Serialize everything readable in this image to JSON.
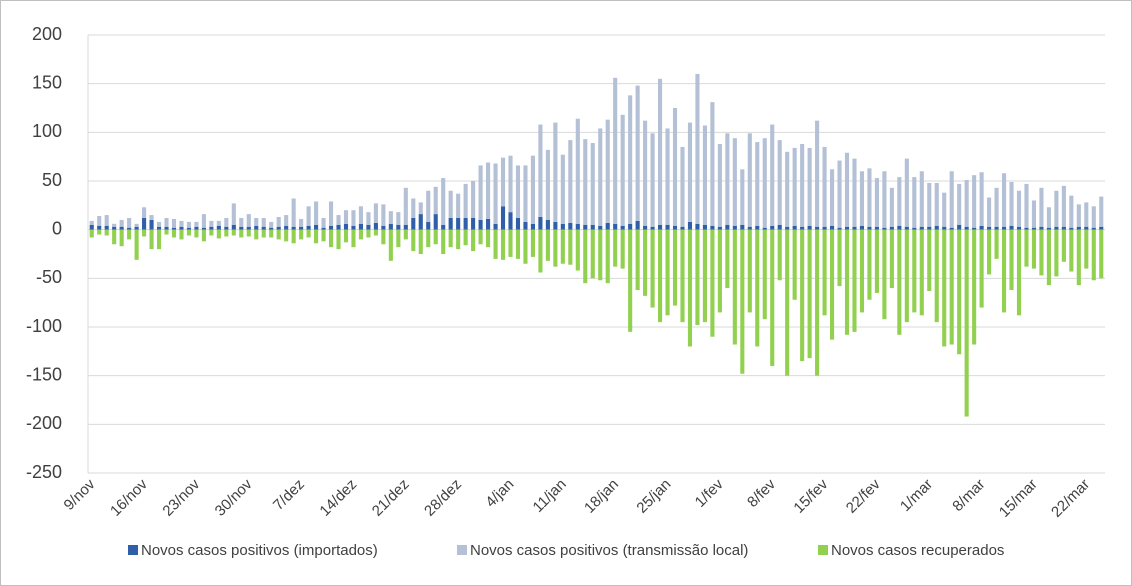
{
  "chart_data": {
    "type": "bar",
    "stacked": true,
    "categories": [
      "9/nov",
      null,
      null,
      null,
      null,
      null,
      null,
      "16/nov",
      null,
      null,
      null,
      null,
      null,
      null,
      "23/nov",
      null,
      null,
      null,
      null,
      null,
      null,
      "30/nov",
      null,
      null,
      null,
      null,
      null,
      null,
      "7/dez",
      null,
      null,
      null,
      null,
      null,
      null,
      "14/dez",
      null,
      null,
      null,
      null,
      null,
      null,
      "21/dez",
      null,
      null,
      null,
      null,
      null,
      null,
      "28/dez",
      null,
      null,
      null,
      null,
      null,
      null,
      "4/jan",
      null,
      null,
      null,
      null,
      null,
      null,
      "11/jan",
      null,
      null,
      null,
      null,
      null,
      null,
      "18/jan",
      null,
      null,
      null,
      null,
      null,
      null,
      "25/jan",
      null,
      null,
      null,
      null,
      null,
      null,
      "1/fev",
      null,
      null,
      null,
      null,
      null,
      null,
      "8/fev",
      null,
      null,
      null,
      null,
      null,
      null,
      "15/fev",
      null,
      null,
      null,
      null,
      null,
      null,
      "22/fev",
      null,
      null,
      null,
      null,
      null,
      null,
      "1/mar",
      null,
      null,
      null,
      null,
      null,
      null,
      "8/mar",
      null,
      null,
      null,
      null,
      null,
      null,
      "15/mar",
      null,
      null,
      null,
      null,
      null,
      null,
      "22/mar",
      null,
      null
    ],
    "series": [
      {
        "name": "Novos casos positivos (importados)",
        "color": "#2e5fa8",
        "values": [
          5,
          4,
          4,
          3,
          3,
          2,
          3,
          12,
          10,
          3,
          3,
          2,
          3,
          2,
          3,
          2,
          3,
          4,
          3,
          5,
          3,
          3,
          4,
          3,
          2,
          3,
          4,
          3,
          3,
          4,
          5,
          2,
          4,
          5,
          6,
          4,
          6,
          5,
          7,
          4,
          6,
          5,
          5,
          12,
          16,
          8,
          16,
          5,
          12,
          12,
          12,
          12,
          10,
          11,
          6,
          24,
          18,
          12,
          8,
          6,
          13,
          10,
          8,
          6,
          7,
          6,
          5,
          5,
          4,
          7,
          6,
          4,
          6,
          9,
          4,
          3,
          5,
          5,
          4,
          3,
          8,
          6,
          5,
          4,
          3,
          5,
          4,
          5,
          3,
          4,
          2,
          4,
          5,
          3,
          4,
          3,
          4,
          3,
          3,
          4,
          2,
          3,
          3,
          4,
          3,
          3,
          2,
          3,
          4,
          3,
          2,
          3,
          3,
          4,
          3,
          2,
          5,
          3,
          2,
          4,
          3,
          3,
          3,
          4,
          3,
          2,
          2,
          3,
          2,
          3,
          3,
          2,
          3,
          3,
          2,
          3
        ]
      },
      {
        "name": "Novos casos positivos (transmissão local)",
        "color": "#b4c0d6",
        "values": [
          4,
          10,
          11,
          3,
          7,
          10,
          3,
          11,
          5,
          5,
          9,
          9,
          6,
          6,
          5,
          14,
          6,
          5,
          9,
          22,
          9,
          13,
          8,
          9,
          6,
          10,
          11,
          29,
          8,
          20,
          24,
          10,
          25,
          10,
          14,
          16,
          18,
          13,
          20,
          22,
          13,
          13,
          38,
          20,
          12,
          32,
          28,
          48,
          28,
          25,
          35,
          38,
          56,
          58,
          62,
          50,
          58,
          54,
          58,
          70,
          95,
          72,
          102,
          71,
          85,
          108,
          88,
          84,
          100,
          106,
          150,
          114,
          132,
          139,
          108,
          96,
          150,
          99,
          121,
          82,
          102,
          154,
          102,
          127,
          85,
          94,
          90,
          57,
          96,
          86,
          92,
          104,
          87,
          77,
          80,
          85,
          80,
          109,
          82,
          58,
          69,
          76,
          70,
          56,
          60,
          50,
          58,
          40,
          50,
          70,
          52,
          57,
          45,
          44,
          35,
          58,
          42,
          48,
          54,
          55,
          30,
          40,
          55,
          45,
          37,
          45,
          28,
          40,
          21,
          37,
          42,
          33,
          23,
          25,
          22,
          31
        ]
      },
      {
        "name": "Novos casos recuperados",
        "color": "#92d050",
        "values": [
          -8,
          -5,
          -6,
          -15,
          -17,
          -10,
          -31,
          -7,
          -20,
          -20,
          -5,
          -8,
          -10,
          -6,
          -8,
          -12,
          -6,
          -9,
          -7,
          -6,
          -8,
          -7,
          -10,
          -8,
          -8,
          -10,
          -12,
          -14,
          -10,
          -8,
          -14,
          -12,
          -18,
          -20,
          -13,
          -18,
          -10,
          -8,
          -6,
          -15,
          -32,
          -18,
          -10,
          -22,
          -25,
          -18,
          -15,
          -25,
          -18,
          -20,
          -16,
          -22,
          -15,
          -18,
          -30,
          -31,
          -28,
          -30,
          -35,
          -28,
          -44,
          -32,
          -38,
          -35,
          -36,
          -42,
          -55,
          -50,
          -52,
          -55,
          -38,
          -40,
          -105,
          -62,
          -68,
          -80,
          -95,
          -88,
          -78,
          -95,
          -120,
          -98,
          -95,
          -110,
          -85,
          -60,
          -118,
          -148,
          -85,
          -120,
          -92,
          -140,
          -52,
          -150,
          -72,
          -135,
          -132,
          -150,
          -88,
          -113,
          -58,
          -108,
          -105,
          -85,
          -72,
          -65,
          -92,
          -60,
          -108,
          -95,
          -85,
          -88,
          -63,
          -95,
          -120,
          -118,
          -128,
          -192,
          -118,
          -80,
          -46,
          -30,
          -85,
          -62,
          -88,
          -38,
          -40,
          -47,
          -57,
          -48,
          -33,
          -43,
          -57,
          -40,
          -52,
          -50
        ]
      }
    ],
    "ylim": [
      -250,
      200
    ],
    "yticks": [
      -250,
      -200,
      -150,
      -100,
      -50,
      0,
      50,
      100,
      150,
      200
    ],
    "grid": true,
    "legend": "bottom"
  }
}
